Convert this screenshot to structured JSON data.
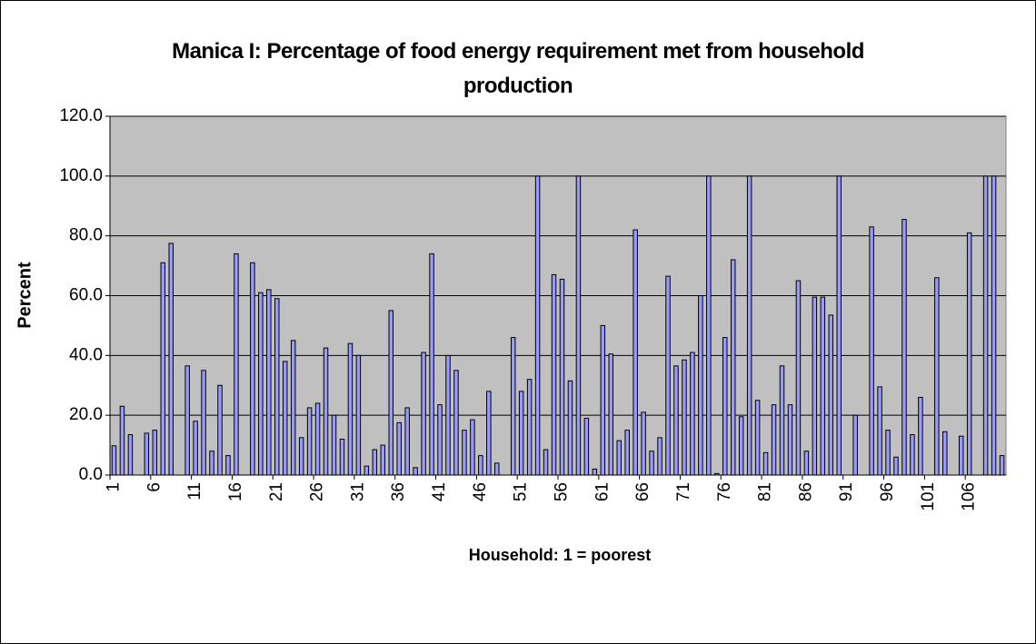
{
  "chart_data": {
    "type": "bar",
    "title": "Manica I: Percentage of food energy requirement met from household production",
    "x_label": "Household: 1 = poorest",
    "y_label": "Percent",
    "categories": [
      "1",
      null,
      null,
      null,
      null,
      "6",
      null,
      null,
      null,
      null,
      "11",
      null,
      null,
      null,
      null,
      "16",
      null,
      null,
      null,
      null,
      "21",
      null,
      null,
      null,
      null,
      "26",
      null,
      null,
      null,
      null,
      "31",
      null,
      null,
      null,
      null,
      "36",
      null,
      null,
      null,
      null,
      "41",
      null,
      null,
      null,
      null,
      "46",
      null,
      null,
      null,
      null,
      "51",
      null,
      null,
      null,
      null,
      "56",
      null,
      null,
      null,
      null,
      "61",
      null,
      null,
      null,
      null,
      "66",
      null,
      null,
      null,
      null,
      "71",
      null,
      null,
      null,
      null,
      "76",
      null,
      null,
      null,
      null,
      "81",
      null,
      null,
      null,
      null,
      "86",
      null,
      null,
      null,
      null,
      "91",
      null,
      null,
      null,
      null,
      "96",
      null,
      null,
      null,
      null,
      "101",
      null,
      null,
      null,
      null,
      "106",
      null,
      null,
      null,
      null
    ],
    "values": [
      9.8,
      23,
      13.5,
      0,
      14,
      15,
      71,
      77.5,
      0,
      36.5,
      18,
      35,
      8,
      30,
      6.5,
      74,
      0,
      71,
      61,
      62,
      59,
      38,
      45,
      12.5,
      22.5,
      24,
      42.5,
      20,
      12,
      44,
      40,
      3,
      8.5,
      10,
      55,
      17.5,
      22.5,
      2.5,
      41,
      74,
      23.5,
      40,
      35,
      15,
      18.5,
      6.5,
      28,
      4,
      0,
      46,
      28,
      32,
      100,
      8.5,
      67,
      65.5,
      31.5,
      100,
      19,
      2,
      50,
      40.5,
      11.5,
      15,
      82,
      21,
      8,
      12.5,
      66.5,
      36.5,
      38.5,
      41,
      60,
      100,
      0.5,
      46,
      72,
      19.5,
      100,
      25,
      7.5,
      23.5,
      36.5,
      23.5,
      65,
      8,
      59.5,
      59.5,
      53.5,
      100,
      0,
      20,
      0,
      83,
      29.5,
      15,
      6,
      85.5,
      13.5,
      26,
      0,
      66,
      14.5,
      0,
      13,
      81,
      0,
      100,
      100,
      6.5
    ],
    "color": "#9999ff",
    "ylim": [
      0,
      120
    ],
    "yticks": [
      {
        "value": 0,
        "label": "0.0"
      },
      {
        "value": 20,
        "label": "20.0"
      },
      {
        "value": 40,
        "label": "40.0"
      },
      {
        "value": 60,
        "label": "60.0"
      },
      {
        "value": 80,
        "label": "80.0"
      },
      {
        "value": 100,
        "label": "100.0"
      },
      {
        "value": 120,
        "label": "120.0"
      }
    ],
    "grid": true
  }
}
